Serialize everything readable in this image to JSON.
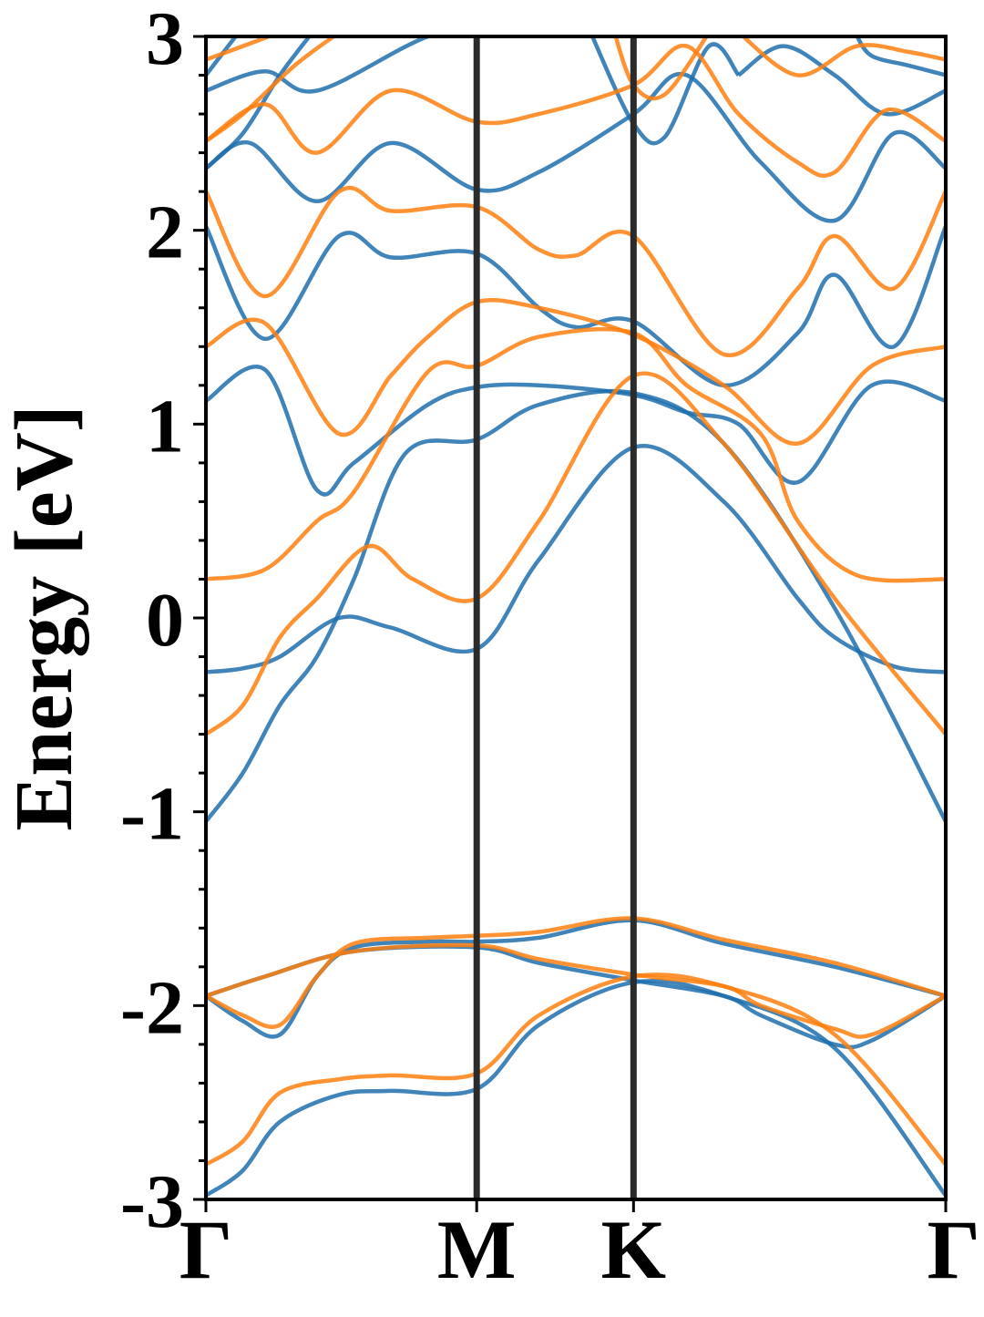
{
  "chart_data": {
    "type": "line",
    "ylabel": "Energy [eV]",
    "xlabel": "",
    "ylim": [
      -3,
      3
    ],
    "yticks": [
      "-3",
      "-2",
      "-1",
      "0",
      "1",
      "2",
      "3"
    ],
    "kpoints": [
      {
        "label": "Γ",
        "x": 0.0
      },
      {
        "label": "M",
        "x": 0.366
      },
      {
        "label": "K",
        "x": 0.578
      },
      {
        "label": "Γ",
        "x": 1.0
      }
    ],
    "grid": false,
    "colors": {
      "spin_up": "#1f6fad",
      "spin_down": "#ff7f0e",
      "kpath_lines": "#2b2b2b"
    },
    "series": [
      {
        "group": "spin_up",
        "values": [
          [
            0,
            -2.98
          ],
          [
            0.05,
            -2.85
          ],
          [
            0.1,
            -2.6
          ],
          [
            0.18,
            -2.46
          ],
          [
            0.25,
            -2.44
          ],
          [
            0.366,
            -2.43
          ],
          [
            0.45,
            -2.1
          ],
          [
            0.578,
            -1.88
          ],
          [
            0.7,
            -1.95
          ],
          [
            0.85,
            -2.22
          ],
          [
            1.0,
            -2.98
          ]
        ]
      },
      {
        "group": "spin_up",
        "values": [
          [
            0,
            -1.95
          ],
          [
            0.05,
            -2.08
          ],
          [
            0.1,
            -2.15
          ],
          [
            0.15,
            -1.85
          ],
          [
            0.2,
            -1.7
          ],
          [
            0.3,
            -1.67
          ],
          [
            0.366,
            -1.67
          ],
          [
            0.45,
            -1.65
          ],
          [
            0.578,
            -1.56
          ],
          [
            0.7,
            -1.68
          ],
          [
            0.85,
            -1.8
          ],
          [
            1.0,
            -1.95
          ]
        ]
      },
      {
        "group": "spin_up",
        "values": [
          [
            0,
            -1.95
          ],
          [
            0.08,
            -1.85
          ],
          [
            0.2,
            -1.72
          ],
          [
            0.366,
            -1.7
          ],
          [
            0.45,
            -1.78
          ],
          [
            0.578,
            -1.87
          ],
          [
            0.7,
            -1.95
          ],
          [
            0.75,
            -2.05
          ],
          [
            0.85,
            -2.2
          ],
          [
            0.9,
            -2.18
          ],
          [
            1.0,
            -1.95
          ]
        ]
      },
      {
        "group": "spin_up",
        "values": [
          [
            0,
            -1.05
          ],
          [
            0.05,
            -0.8
          ],
          [
            0.1,
            -0.45
          ],
          [
            0.15,
            -0.2
          ],
          [
            0.2,
            0.2
          ],
          [
            0.27,
            0.85
          ],
          [
            0.366,
            0.92
          ],
          [
            0.45,
            1.1
          ],
          [
            0.578,
            1.16
          ],
          [
            0.7,
            0.9
          ],
          [
            0.85,
            0.05
          ],
          [
            1.0,
            -1.05
          ]
        ]
      },
      {
        "group": "spin_up",
        "values": [
          [
            0,
            -0.28
          ],
          [
            0.05,
            -0.26
          ],
          [
            0.1,
            -0.2
          ],
          [
            0.18,
            0.0
          ],
          [
            0.25,
            -0.05
          ],
          [
            0.366,
            -0.16
          ],
          [
            0.45,
            0.3
          ],
          [
            0.578,
            0.88
          ],
          [
            0.7,
            0.6
          ],
          [
            0.8,
            0.1
          ],
          [
            0.85,
            -0.1
          ],
          [
            0.93,
            -0.25
          ],
          [
            1.0,
            -0.28
          ]
        ]
      },
      {
        "group": "spin_up",
        "values": [
          [
            0,
            1.12
          ],
          [
            0.08,
            1.28
          ],
          [
            0.15,
            0.66
          ],
          [
            0.2,
            0.8
          ],
          [
            0.3,
            1.1
          ],
          [
            0.366,
            1.19
          ],
          [
            0.45,
            1.2
          ],
          [
            0.578,
            1.15
          ],
          [
            0.65,
            1.06
          ],
          [
            0.72,
            1.0
          ],
          [
            0.8,
            0.7
          ],
          [
            0.9,
            1.2
          ],
          [
            1.0,
            1.12
          ]
        ]
      },
      {
        "group": "spin_up",
        "values": [
          [
            0,
            2.02
          ],
          [
            0.08,
            1.44
          ],
          [
            0.18,
            1.97
          ],
          [
            0.25,
            1.86
          ],
          [
            0.366,
            1.88
          ],
          [
            0.45,
            1.6
          ],
          [
            0.5,
            1.5
          ],
          [
            0.578,
            1.53
          ],
          [
            0.7,
            1.2
          ],
          [
            0.8,
            1.47
          ],
          [
            0.85,
            1.77
          ],
          [
            0.93,
            1.4
          ],
          [
            1.0,
            2.02
          ]
        ]
      },
      {
        "group": "spin_up",
        "values": [
          [
            0,
            2.32
          ],
          [
            0.06,
            2.45
          ],
          [
            0.15,
            2.15
          ],
          [
            0.25,
            2.45
          ],
          [
            0.366,
            2.21
          ],
          [
            0.45,
            2.3
          ],
          [
            0.578,
            2.6
          ],
          [
            0.65,
            2.8
          ],
          [
            0.75,
            2.35
          ],
          [
            0.85,
            2.05
          ],
          [
            0.93,
            2.5
          ],
          [
            1.0,
            2.32
          ]
        ]
      },
      {
        "group": "spin_up",
        "values": [
          [
            0,
            2.72
          ],
          [
            0.08,
            2.82
          ],
          [
            0.15,
            2.72
          ],
          [
            0.3,
            3.0
          ],
          [
            0.42,
            3.1
          ]
        ]
      },
      {
        "group": "spin_up",
        "values": [
          [
            0,
            2.32
          ],
          [
            0.05,
            2.5
          ],
          [
            0.1,
            2.8
          ],
          [
            0.15,
            3.05
          ]
        ]
      },
      {
        "group": "spin_up",
        "values": [
          [
            0.52,
            3.02
          ],
          [
            0.578,
            2.55
          ],
          [
            0.62,
            2.48
          ],
          [
            0.68,
            2.95
          ],
          [
            0.72,
            2.8
          ]
        ]
      },
      {
        "group": "spin_up",
        "values": [
          [
            0.72,
            2.8
          ],
          [
            0.78,
            2.95
          ],
          [
            0.85,
            2.8
          ],
          [
            0.92,
            2.6
          ],
          [
            1.0,
            2.72
          ]
        ]
      },
      {
        "group": "spin_up",
        "values": [
          [
            0,
            2.8
          ],
          [
            0.05,
            3.05
          ]
        ]
      },
      {
        "group": "spin_up",
        "values": [
          [
            0.88,
            3.0
          ],
          [
            0.9,
            2.9
          ],
          [
            0.95,
            2.85
          ],
          [
            1.0,
            2.8
          ]
        ]
      },
      {
        "group": "spin_down",
        "values": [
          [
            0,
            -2.82
          ],
          [
            0.05,
            -2.7
          ],
          [
            0.1,
            -2.45
          ],
          [
            0.18,
            -2.38
          ],
          [
            0.25,
            -2.36
          ],
          [
            0.366,
            -2.35
          ],
          [
            0.45,
            -2.05
          ],
          [
            0.578,
            -1.85
          ],
          [
            0.7,
            -1.9
          ],
          [
            0.85,
            -2.15
          ],
          [
            1.0,
            -2.82
          ]
        ]
      },
      {
        "group": "spin_down",
        "values": [
          [
            0,
            -1.95
          ],
          [
            0.05,
            -2.05
          ],
          [
            0.1,
            -2.1
          ],
          [
            0.15,
            -1.85
          ],
          [
            0.2,
            -1.68
          ],
          [
            0.3,
            -1.65
          ],
          [
            0.366,
            -1.64
          ],
          [
            0.45,
            -1.62
          ],
          [
            0.578,
            -1.55
          ],
          [
            0.7,
            -1.66
          ],
          [
            0.85,
            -1.78
          ],
          [
            1.0,
            -1.95
          ]
        ]
      },
      {
        "group": "spin_down",
        "values": [
          [
            0,
            -1.95
          ],
          [
            0.08,
            -1.85
          ],
          [
            0.2,
            -1.72
          ],
          [
            0.366,
            -1.69
          ],
          [
            0.45,
            -1.76
          ],
          [
            0.578,
            -1.84
          ],
          [
            0.7,
            -1.9
          ],
          [
            0.75,
            -2.0
          ],
          [
            0.85,
            -2.12
          ],
          [
            0.9,
            -2.15
          ],
          [
            1.0,
            -1.95
          ]
        ]
      },
      {
        "group": "spin_down",
        "values": [
          [
            0,
            -0.6
          ],
          [
            0.05,
            -0.45
          ],
          [
            0.1,
            -0.1
          ],
          [
            0.15,
            0.1
          ],
          [
            0.22,
            0.37
          ],
          [
            0.28,
            0.2
          ],
          [
            0.366,
            0.1
          ],
          [
            0.45,
            0.5
          ],
          [
            0.578,
            1.25
          ],
          [
            0.7,
            0.9
          ],
          [
            0.85,
            0.1
          ],
          [
            1.0,
            -0.6
          ]
        ]
      },
      {
        "group": "spin_down",
        "values": [
          [
            0,
            0.2
          ],
          [
            0.08,
            0.25
          ],
          [
            0.15,
            0.5
          ],
          [
            0.2,
            0.65
          ],
          [
            0.3,
            1.27
          ],
          [
            0.366,
            1.3
          ],
          [
            0.45,
            1.45
          ],
          [
            0.578,
            1.47
          ],
          [
            0.65,
            1.2
          ],
          [
            0.75,
            0.95
          ],
          [
            0.8,
            0.5
          ],
          [
            0.88,
            0.22
          ],
          [
            1.0,
            0.2
          ]
        ]
      },
      {
        "group": "spin_down",
        "values": [
          [
            0,
            1.4
          ],
          [
            0.08,
            1.52
          ],
          [
            0.18,
            0.95
          ],
          [
            0.25,
            1.25
          ],
          [
            0.3,
            1.45
          ],
          [
            0.366,
            1.63
          ],
          [
            0.45,
            1.6
          ],
          [
            0.578,
            1.46
          ],
          [
            0.7,
            1.2
          ],
          [
            0.8,
            0.9
          ],
          [
            0.9,
            1.3
          ],
          [
            1.0,
            1.4
          ]
        ]
      },
      {
        "group": "spin_down",
        "values": [
          [
            0,
            2.2
          ],
          [
            0.08,
            1.66
          ],
          [
            0.18,
            2.2
          ],
          [
            0.25,
            2.1
          ],
          [
            0.366,
            2.12
          ],
          [
            0.45,
            1.9
          ],
          [
            0.5,
            1.87
          ],
          [
            0.578,
            1.97
          ],
          [
            0.7,
            1.36
          ],
          [
            0.8,
            1.7
          ],
          [
            0.85,
            1.97
          ],
          [
            0.93,
            1.7
          ],
          [
            1.0,
            2.2
          ]
        ]
      },
      {
        "group": "spin_down",
        "values": [
          [
            0,
            2.46
          ],
          [
            0.08,
            2.65
          ],
          [
            0.15,
            2.4
          ],
          [
            0.25,
            2.72
          ],
          [
            0.366,
            2.56
          ],
          [
            0.45,
            2.6
          ],
          [
            0.578,
            2.75
          ],
          [
            0.65,
            2.95
          ],
          [
            0.72,
            2.6
          ],
          [
            0.8,
            2.35
          ],
          [
            0.85,
            2.3
          ],
          [
            0.92,
            2.62
          ],
          [
            1.0,
            2.46
          ]
        ]
      },
      {
        "group": "spin_down",
        "values": [
          [
            0,
            2.88
          ],
          [
            0.05,
            2.95
          ],
          [
            0.12,
            3.05
          ]
        ]
      },
      {
        "group": "spin_down",
        "values": [
          [
            0,
            2.46
          ],
          [
            0.05,
            2.6
          ],
          [
            0.12,
            2.85
          ],
          [
            0.18,
            3.02
          ]
        ]
      },
      {
        "group": "spin_down",
        "values": [
          [
            0.55,
            3.05
          ],
          [
            0.578,
            2.75
          ],
          [
            0.62,
            2.7
          ],
          [
            0.68,
            3.02
          ]
        ]
      },
      {
        "group": "spin_down",
        "values": [
          [
            0.72,
            3.02
          ],
          [
            0.8,
            2.8
          ],
          [
            0.88,
            2.95
          ],
          [
            0.95,
            2.92
          ],
          [
            1.0,
            2.88
          ]
        ]
      }
    ]
  }
}
